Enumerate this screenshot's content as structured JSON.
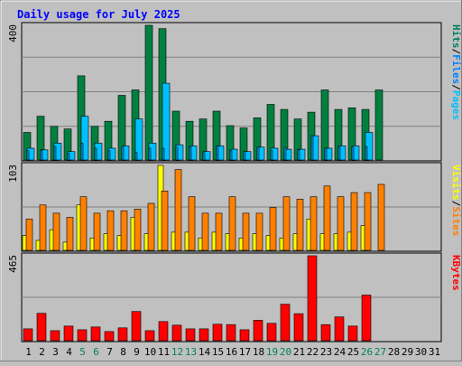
{
  "chart_data": [
    {
      "type": "bar",
      "title": "Daily usage for July 2025",
      "categories": [
        "1",
        "2",
        "3",
        "4",
        "5",
        "6",
        "7",
        "8",
        "9",
        "10",
        "11",
        "12",
        "13",
        "14",
        "15",
        "16",
        "17",
        "18",
        "19",
        "20",
        "21",
        "22",
        "23",
        "24",
        "25",
        "26",
        "27",
        "28",
        "29",
        "30",
        "31"
      ],
      "ylabel_parts": [
        "Hits",
        "/",
        "Files",
        "/",
        "Pages"
      ],
      "ymax_label": "400",
      "ylim": [
        0,
        400
      ],
      "series": [
        {
          "name": "Hits",
          "color": "#008040",
          "values": [
            82,
            130,
            100,
            92,
            250,
            100,
            115,
            192,
            208,
            400,
            390,
            145,
            115,
            122,
            145,
            102,
            95,
            125,
            165,
            150,
            122,
            142,
            208,
            150,
            155,
            150,
            208,
            0,
            0,
            0,
            0
          ]
        },
        {
          "name": "Files",
          "color": "#00c0ff",
          "values": [
            35,
            30,
            50,
            25,
            130,
            50,
            35,
            42,
            122,
            50,
            228,
            45,
            42,
            25,
            42,
            32,
            25,
            38,
            35,
            32,
            32,
            72,
            35,
            42,
            42,
            82,
            0,
            0,
            0,
            0,
            0
          ]
        },
        {
          "name": "Pages",
          "color": "#00a0ff",
          "values": [
            28,
            28,
            40,
            20,
            50,
            35,
            28,
            42,
            22,
            35,
            35,
            38,
            38,
            22,
            42,
            28,
            25,
            38,
            28,
            38,
            30,
            72,
            35,
            38,
            38,
            40,
            0,
            0,
            0,
            0,
            0
          ]
        }
      ]
    },
    {
      "type": "bar",
      "categories": [
        "1",
        "2",
        "3",
        "4",
        "5",
        "6",
        "7",
        "8",
        "9",
        "10",
        "11",
        "12",
        "13",
        "14",
        "15",
        "16",
        "17",
        "18",
        "19",
        "20",
        "21",
        "22",
        "23",
        "24",
        "25",
        "26",
        "27",
        "28",
        "29",
        "30",
        "31"
      ],
      "ylabel_parts": [
        "Visits",
        "/",
        "Sites"
      ],
      "ymax_label": "103",
      "ylim": [
        0,
        103
      ],
      "series": [
        {
          "name": "Visits",
          "color": "#ffff00",
          "values": [
            18,
            12,
            25,
            10,
            55,
            15,
            20,
            18,
            40,
            20,
            103,
            22,
            22,
            15,
            22,
            20,
            15,
            20,
            18,
            15,
            20,
            38,
            20,
            20,
            22,
            30,
            0,
            0,
            0,
            0,
            0
          ]
        },
        {
          "name": "Sites",
          "color": "#ff8000",
          "values": [
            38,
            55,
            45,
            40,
            65,
            45,
            48,
            48,
            50,
            57,
            72,
            98,
            65,
            45,
            45,
            65,
            45,
            45,
            52,
            65,
            62,
            65,
            78,
            65,
            70,
            70,
            80,
            0,
            0,
            0,
            0
          ]
        }
      ]
    },
    {
      "type": "bar",
      "categories": [
        "1",
        "2",
        "3",
        "4",
        "5",
        "6",
        "7",
        "8",
        "9",
        "10",
        "11",
        "12",
        "13",
        "14",
        "15",
        "16",
        "17",
        "18",
        "19",
        "20",
        "21",
        "22",
        "23",
        "24",
        "25",
        "26",
        "27",
        "28",
        "29",
        "30",
        "31"
      ],
      "ylabel_parts": [
        "KBytes"
      ],
      "ymax_label": "465",
      "ylim": [
        0,
        465
      ],
      "series": [
        {
          "name": "KBytes",
          "color": "#ff0000",
          "values": [
            65,
            150,
            55,
            80,
            60,
            75,
            50,
            70,
            160,
            55,
            105,
            85,
            65,
            65,
            90,
            88,
            60,
            112,
            95,
            200,
            148,
            465,
            88,
            130,
            80,
            250,
            0,
            0,
            0,
            0,
            0
          ]
        }
      ]
    }
  ],
  "colors": {
    "title": "#0000ff",
    "weekend_label": "#00805c",
    "weekday_label": "#000000",
    "kbytes_label": "#ff0000",
    "panel_bg": "#c0c0c0",
    "grid": "#808080"
  },
  "weekend_days": [
    "5",
    "6",
    "12",
    "13",
    "19",
    "20",
    "26",
    "27"
  ]
}
